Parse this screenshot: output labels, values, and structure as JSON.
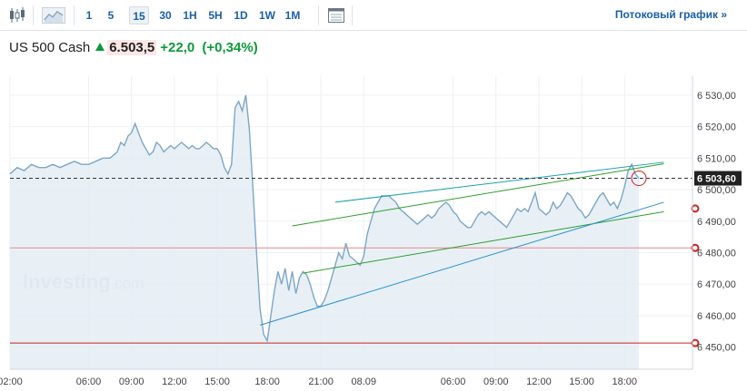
{
  "toolbar": {
    "icons": [
      "candlestick-icon",
      "area-chart-icon",
      "table-icon"
    ],
    "timeframes": [
      "1",
      "5",
      "15",
      "30",
      "1H",
      "5H",
      "1D",
      "1W",
      "1M"
    ],
    "active_timeframe": "15",
    "stream_link": "Потоковый график »"
  },
  "quote": {
    "name": "US 500 Cash",
    "price": "6.503,5",
    "change": "+22,0",
    "change_pct": "(+0,34%)",
    "direction": "up"
  },
  "watermark": {
    "brand": "Investing",
    "suffix": ".com"
  },
  "colors": {
    "line": "#7ea6c7",
    "fill": "#e4edf5",
    "up": "#0c9a39",
    "price_tag": "#222222",
    "hline_red": "#cc2222",
    "trend_teal": "#1aa0b0",
    "trend_green": "#2e9e2e",
    "trend_blue": "#2a8fd0"
  },
  "chart_data": {
    "type": "area",
    "title": "",
    "xlabel": "",
    "ylabel": "",
    "y_axis_position": "right",
    "ylim": [
      6443,
      6536
    ],
    "y_ticks": [
      {
        "v": 6530,
        "label": "6 530,00"
      },
      {
        "v": 6520,
        "label": "6 520,00"
      },
      {
        "v": 6510,
        "label": "6 510,00"
      },
      {
        "v": 6500,
        "label": "6 500,00"
      },
      {
        "v": 6490,
        "label": "6 490,00"
      },
      {
        "v": 6480,
        "label": "6 480,00"
      },
      {
        "v": 6470,
        "label": "6 470,00"
      },
      {
        "v": 6460,
        "label": "6 460,00"
      },
      {
        "v": 6450,
        "label": "6 450,00"
      }
    ],
    "xlim": [
      0,
      191
    ],
    "x_ticks": [
      {
        "i": 0,
        "label": "02:00"
      },
      {
        "i": 22,
        "label": "06:00"
      },
      {
        "i": 34,
        "label": "09:00"
      },
      {
        "i": 46,
        "label": "12:00"
      },
      {
        "i": 58,
        "label": "15:00"
      },
      {
        "i": 72,
        "label": "18:00"
      },
      {
        "i": 87,
        "label": "21:00"
      },
      {
        "i": 99,
        "label": "08.09"
      },
      {
        "i": 124,
        "label": "06:00"
      },
      {
        "i": 136,
        "label": "09:00"
      },
      {
        "i": 148,
        "label": "12:00"
      },
      {
        "i": 160,
        "label": "15:00"
      },
      {
        "i": 172,
        "label": "18:00"
      }
    ],
    "series": [
      {
        "points": [
          [
            0,
            6505
          ],
          [
            2,
            6507
          ],
          [
            4,
            6506
          ],
          [
            6,
            6508
          ],
          [
            8,
            6507
          ],
          [
            10,
            6507
          ],
          [
            12,
            6508
          ],
          [
            14,
            6507
          ],
          [
            16,
            6508
          ],
          [
            18,
            6509
          ],
          [
            20,
            6508
          ],
          [
            22,
            6508
          ],
          [
            24,
            6509
          ],
          [
            26,
            6510
          ],
          [
            28,
            6510
          ],
          [
            30,
            6512
          ],
          [
            31,
            6515
          ],
          [
            32,
            6514
          ],
          [
            33,
            6517
          ],
          [
            34,
            6518
          ],
          [
            35,
            6521
          ],
          [
            36,
            6518
          ],
          [
            37,
            6515
          ],
          [
            38,
            6513
          ],
          [
            39,
            6511
          ],
          [
            40,
            6512
          ],
          [
            41,
            6515
          ],
          [
            42,
            6514
          ],
          [
            43,
            6512
          ],
          [
            44,
            6513
          ],
          [
            45,
            6514
          ],
          [
            46,
            6513
          ],
          [
            47,
            6514
          ],
          [
            48,
            6515
          ],
          [
            49,
            6514
          ],
          [
            50,
            6513
          ],
          [
            51,
            6514
          ],
          [
            52,
            6513
          ],
          [
            53,
            6513
          ],
          [
            54,
            6514
          ],
          [
            55,
            6515
          ],
          [
            56,
            6514
          ],
          [
            57,
            6513
          ],
          [
            58,
            6513
          ],
          [
            59,
            6511
          ],
          [
            60,
            6507
          ],
          [
            61,
            6505
          ],
          [
            62,
            6508
          ],
          [
            63,
            6526
          ],
          [
            64,
            6528
          ],
          [
            65,
            6525
          ],
          [
            66,
            6530
          ],
          [
            67,
            6519
          ],
          [
            68,
            6500
          ],
          [
            69,
            6480
          ],
          [
            70,
            6462
          ],
          [
            71,
            6454
          ],
          [
            72,
            6452
          ],
          [
            73,
            6460
          ],
          [
            74,
            6468
          ],
          [
            75,
            6474
          ],
          [
            76,
            6470
          ],
          [
            77,
            6475
          ],
          [
            78,
            6468
          ],
          [
            79,
            6474
          ],
          [
            80,
            6467
          ],
          [
            81,
            6472
          ],
          [
            82,
            6474
          ],
          [
            83,
            6473
          ],
          [
            84,
            6470
          ],
          [
            85,
            6466
          ],
          [
            86,
            6463
          ],
          [
            87,
            6463
          ],
          [
            88,
            6465
          ],
          [
            89,
            6468
          ],
          [
            90,
            6472
          ],
          [
            91,
            6476
          ],
          [
            92,
            6480
          ],
          [
            93,
            6478
          ],
          [
            94,
            6483
          ],
          [
            95,
            6479
          ],
          [
            96,
            6478
          ],
          [
            97,
            6477
          ],
          [
            98,
            6476
          ],
          [
            99,
            6479
          ],
          [
            100,
            6486
          ],
          [
            101,
            6490
          ],
          [
            102,
            6494
          ],
          [
            103,
            6496
          ],
          [
            104,
            6498
          ],
          [
            105,
            6498
          ],
          [
            106,
            6498
          ],
          [
            107,
            6497
          ],
          [
            108,
            6496
          ],
          [
            109,
            6494
          ],
          [
            110,
            6493
          ],
          [
            111,
            6492
          ],
          [
            112,
            6491
          ],
          [
            113,
            6490
          ],
          [
            114,
            6489
          ],
          [
            115,
            6490
          ],
          [
            116,
            6491
          ],
          [
            117,
            6492
          ],
          [
            118,
            6491
          ],
          [
            119,
            6492
          ],
          [
            120,
            6494
          ],
          [
            121,
            6495
          ],
          [
            122,
            6496
          ],
          [
            123,
            6495
          ],
          [
            124,
            6493
          ],
          [
            125,
            6492
          ],
          [
            126,
            6490
          ],
          [
            127,
            6489
          ],
          [
            128,
            6488
          ],
          [
            129,
            6488
          ],
          [
            130,
            6490
          ],
          [
            131,
            6492
          ],
          [
            132,
            6493
          ],
          [
            133,
            6492
          ],
          [
            134,
            6493
          ],
          [
            135,
            6492
          ],
          [
            136,
            6491
          ],
          [
            137,
            6490
          ],
          [
            138,
            6489
          ],
          [
            139,
            6488
          ],
          [
            140,
            6490
          ],
          [
            141,
            6492
          ],
          [
            142,
            6494
          ],
          [
            143,
            6493
          ],
          [
            144,
            6494
          ],
          [
            145,
            6493
          ],
          [
            146,
            6496
          ],
          [
            147,
            6499
          ],
          [
            148,
            6494
          ],
          [
            149,
            6493
          ],
          [
            150,
            6492
          ],
          [
            151,
            6493
          ],
          [
            152,
            6496
          ],
          [
            153,
            6494
          ],
          [
            154,
            6495
          ],
          [
            155,
            6497
          ],
          [
            156,
            6499
          ],
          [
            157,
            6498
          ],
          [
            158,
            6496
          ],
          [
            159,
            6494
          ],
          [
            160,
            6493
          ],
          [
            161,
            6491
          ],
          [
            162,
            6492
          ],
          [
            163,
            6494
          ],
          [
            164,
            6496
          ],
          [
            165,
            6498
          ],
          [
            166,
            6499
          ],
          [
            167,
            6497
          ],
          [
            168,
            6495
          ],
          [
            169,
            6496
          ],
          [
            170,
            6494
          ],
          [
            171,
            6497
          ],
          [
            172,
            6501
          ],
          [
            173,
            6506
          ],
          [
            174,
            6508
          ],
          [
            175,
            6505
          ],
          [
            176,
            6503.6
          ]
        ]
      }
    ],
    "current_price": {
      "value": 6503.6,
      "label": "6 503,60"
    },
    "horizontal_lines": [
      {
        "value": 6481.5,
        "color": "#e88888"
      },
      {
        "value": 6451.3,
        "color": "#cc2222"
      }
    ],
    "trendlines": [
      {
        "color": "#1aa0b0",
        "from": [
          91,
          6496
        ],
        "to": [
          183,
          6508.7
        ]
      },
      {
        "color": "#2e9e2e",
        "from": [
          79,
          6488.5
        ],
        "to": [
          183,
          6508.2
        ]
      },
      {
        "color": "#2e9e2e",
        "from": [
          82,
          6473.5
        ],
        "to": [
          183,
          6493
        ]
      },
      {
        "color": "#2a8fd0",
        "from": [
          70,
          6457
        ],
        "to": [
          183,
          6496
        ]
      }
    ],
    "grid": true,
    "legend": "none"
  }
}
